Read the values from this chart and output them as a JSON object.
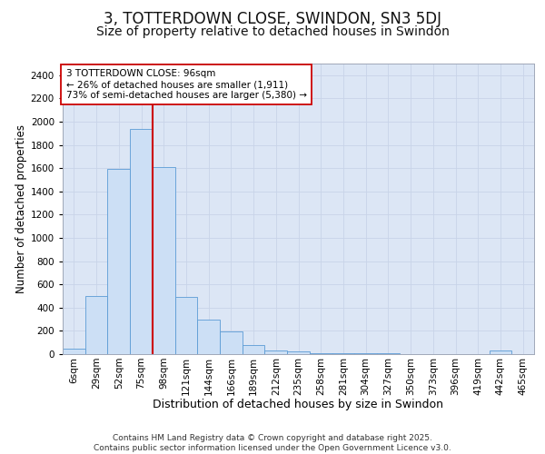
{
  "title": "3, TOTTERDOWN CLOSE, SWINDON, SN3 5DJ",
  "subtitle": "Size of property relative to detached houses in Swindon",
  "xlabel": "Distribution of detached houses by size in Swindon",
  "ylabel": "Number of detached properties",
  "bar_labels": [
    "6sqm",
    "29sqm",
    "52sqm",
    "75sqm",
    "98sqm",
    "121sqm",
    "144sqm",
    "166sqm",
    "189sqm",
    "212sqm",
    "235sqm",
    "258sqm",
    "281sqm",
    "304sqm",
    "327sqm",
    "350sqm",
    "373sqm",
    "396sqm",
    "419sqm",
    "442sqm",
    "465sqm"
  ],
  "bar_values": [
    50,
    500,
    1590,
    1940,
    1610,
    490,
    300,
    195,
    75,
    30,
    20,
    10,
    10,
    5,
    5,
    0,
    0,
    0,
    0,
    30,
    0
  ],
  "bar_color": "#ccdff5",
  "bar_edge_color": "#5b9bd5",
  "grid_color": "#c8d4e8",
  "bg_color": "#dce6f5",
  "vline_color": "#cc0000",
  "annotation_text": "3 TOTTERDOWN CLOSE: 96sqm\n← 26% of detached houses are smaller (1,911)\n73% of semi-detached houses are larger (5,380) →",
  "annotation_box_color": "#ffffff",
  "annotation_box_edge": "#cc0000",
  "ylim": [
    0,
    2500
  ],
  "yticks": [
    0,
    200,
    400,
    600,
    800,
    1000,
    1200,
    1400,
    1600,
    1800,
    2000,
    2200,
    2400
  ],
  "footer": "Contains HM Land Registry data © Crown copyright and database right 2025.\nContains public sector information licensed under the Open Government Licence v3.0.",
  "title_fontsize": 12,
  "subtitle_fontsize": 10,
  "ylabel_fontsize": 8.5,
  "xlabel_fontsize": 9,
  "tick_fontsize": 7.5,
  "annotation_fontsize": 7.5,
  "footer_fontsize": 6.5,
  "vline_bar_index": 2
}
